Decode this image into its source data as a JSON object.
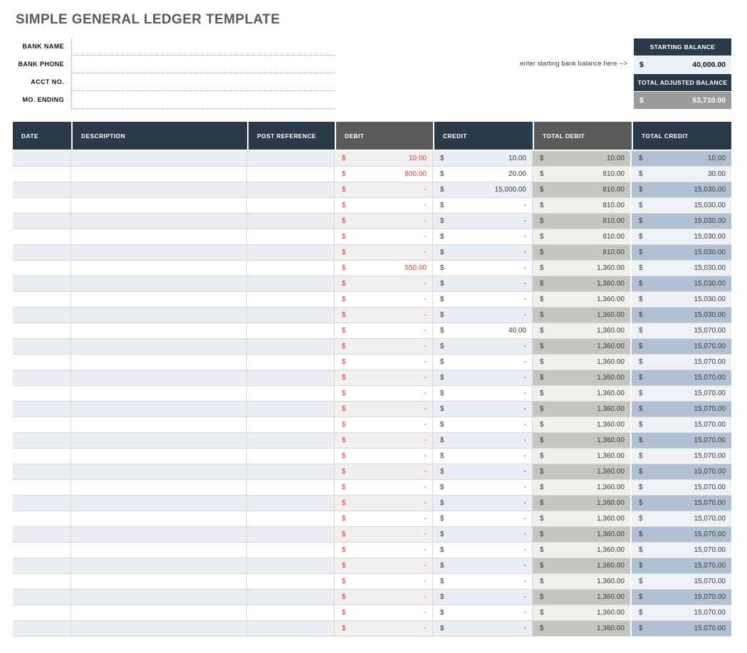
{
  "title": "SIMPLE GENERAL LEDGER TEMPLATE",
  "form": {
    "fields": [
      {
        "label": "BANK NAME",
        "value": ""
      },
      {
        "label": "BANK PHONE",
        "value": ""
      },
      {
        "label": "ACCT NO.",
        "value": ""
      },
      {
        "label": "MO. ENDING",
        "value": ""
      }
    ]
  },
  "balance_panel": {
    "hint": "enter starting bank balance here -->",
    "starting": {
      "label": "STARTING BALANCE",
      "currency": "$",
      "value": "40,000.00"
    },
    "adjusted": {
      "label": "TOTAL ADJUSTED BALANCE",
      "currency": "$",
      "value": "53,710.00"
    }
  },
  "table": {
    "currency": "$",
    "columns": [
      "DATE",
      "DESCRIPTION",
      "POST REFERENCE",
      "DEBIT",
      "CREDIT",
      "TOTAL DEBIT",
      "TOTAL CREDIT"
    ],
    "rows": [
      {
        "date": "",
        "description": "",
        "post_reference": "",
        "debit": "10.00",
        "credit": "10.00",
        "total_debit": "10.00",
        "total_credit": "10.00"
      },
      {
        "date": "",
        "description": "",
        "post_reference": "",
        "debit": "800.00",
        "credit": "20.00",
        "total_debit": "810.00",
        "total_credit": "30.00"
      },
      {
        "date": "",
        "description": "",
        "post_reference": "",
        "debit": "-",
        "credit": "15,000.00",
        "total_debit": "810.00",
        "total_credit": "15,030.00"
      },
      {
        "date": "",
        "description": "",
        "post_reference": "",
        "debit": "-",
        "credit": "-",
        "total_debit": "810.00",
        "total_credit": "15,030.00"
      },
      {
        "date": "",
        "description": "",
        "post_reference": "",
        "debit": "-",
        "credit": "-",
        "total_debit": "810.00",
        "total_credit": "15,030.00"
      },
      {
        "date": "",
        "description": "",
        "post_reference": "",
        "debit": "-",
        "credit": "-",
        "total_debit": "810.00",
        "total_credit": "15,030.00"
      },
      {
        "date": "",
        "description": "",
        "post_reference": "",
        "debit": "-",
        "credit": "-",
        "total_debit": "810.00",
        "total_credit": "15,030.00"
      },
      {
        "date": "",
        "description": "",
        "post_reference": "",
        "debit": "550.00",
        "credit": "-",
        "total_debit": "1,360.00",
        "total_credit": "15,030.00"
      },
      {
        "date": "",
        "description": "",
        "post_reference": "",
        "debit": "-",
        "credit": "-",
        "total_debit": "1,360.00",
        "total_credit": "15,030.00"
      },
      {
        "date": "",
        "description": "",
        "post_reference": "",
        "debit": "-",
        "credit": "-",
        "total_debit": "1,360.00",
        "total_credit": "15,030.00"
      },
      {
        "date": "",
        "description": "",
        "post_reference": "",
        "debit": "-",
        "credit": "-",
        "total_debit": "1,360.00",
        "total_credit": "15,030.00"
      },
      {
        "date": "",
        "description": "",
        "post_reference": "",
        "debit": "-",
        "credit": "40.00",
        "total_debit": "1,360.00",
        "total_credit": "15,070.00"
      },
      {
        "date": "",
        "description": "",
        "post_reference": "",
        "debit": "-",
        "credit": "-",
        "total_debit": "1,360.00",
        "total_credit": "15,070.00"
      },
      {
        "date": "",
        "description": "",
        "post_reference": "",
        "debit": "-",
        "credit": "-",
        "total_debit": "1,360.00",
        "total_credit": "15,070.00"
      },
      {
        "date": "",
        "description": "",
        "post_reference": "",
        "debit": "-",
        "credit": "-",
        "total_debit": "1,360.00",
        "total_credit": "15,070.00"
      },
      {
        "date": "",
        "description": "",
        "post_reference": "",
        "debit": "-",
        "credit": "-",
        "total_debit": "1,360.00",
        "total_credit": "15,070.00"
      },
      {
        "date": "",
        "description": "",
        "post_reference": "",
        "debit": "-",
        "credit": "-",
        "total_debit": "1,360.00",
        "total_credit": "15,070.00"
      },
      {
        "date": "",
        "description": "",
        "post_reference": "",
        "debit": "-",
        "credit": "-",
        "total_debit": "1,360.00",
        "total_credit": "15,070.00"
      },
      {
        "date": "",
        "description": "",
        "post_reference": "",
        "debit": "-",
        "credit": "-",
        "total_debit": "1,360.00",
        "total_credit": "15,070.00"
      },
      {
        "date": "",
        "description": "",
        "post_reference": "",
        "debit": "-",
        "credit": "-",
        "total_debit": "1,360.00",
        "total_credit": "15,070.00"
      },
      {
        "date": "",
        "description": "",
        "post_reference": "",
        "debit": "-",
        "credit": "-",
        "total_debit": "1,360.00",
        "total_credit": "15,070.00"
      },
      {
        "date": "",
        "description": "",
        "post_reference": "",
        "debit": "-",
        "credit": "-",
        "total_debit": "1,360.00",
        "total_credit": "15,070.00"
      },
      {
        "date": "",
        "description": "",
        "post_reference": "",
        "debit": "-",
        "credit": "-",
        "total_debit": "1,360.00",
        "total_credit": "15,070.00"
      },
      {
        "date": "",
        "description": "",
        "post_reference": "",
        "debit": "-",
        "credit": "-",
        "total_debit": "1,360.00",
        "total_credit": "15,070.00"
      },
      {
        "date": "",
        "description": "",
        "post_reference": "",
        "debit": "-",
        "credit": "-",
        "total_debit": "1,360.00",
        "total_credit": "15,070.00"
      },
      {
        "date": "",
        "description": "",
        "post_reference": "",
        "debit": "-",
        "credit": "-",
        "total_debit": "1,360.00",
        "total_credit": "15,070.00"
      },
      {
        "date": "",
        "description": "",
        "post_reference": "",
        "debit": "-",
        "credit": "-",
        "total_debit": "1,360.00",
        "total_credit": "15,070.00"
      },
      {
        "date": "",
        "description": "",
        "post_reference": "",
        "debit": "-",
        "credit": "-",
        "total_debit": "1,360.00",
        "total_credit": "15,070.00"
      },
      {
        "date": "",
        "description": "",
        "post_reference": "",
        "debit": "-",
        "credit": "-",
        "total_debit": "1,360.00",
        "total_credit": "15,070.00"
      },
      {
        "date": "",
        "description": "",
        "post_reference": "",
        "debit": "-",
        "credit": "-",
        "total_debit": "1,360.00",
        "total_credit": "15,070.00"
      },
      {
        "date": "",
        "description": "",
        "post_reference": "",
        "debit": "-",
        "credit": "-",
        "total_debit": "1,360.00",
        "total_credit": "15,070.00"
      }
    ]
  },
  "colors": {
    "header_navy": "#2b3a49",
    "header_gray": "#5a5a58",
    "debit_red": "#de3b35",
    "row_light": "#eaedf2",
    "total_debit_fill": "#c6c5c1",
    "total_credit_fill": "#b1c1d3",
    "starting_fill": "#edf0f4",
    "adjusted_fill": "#9b9b9b",
    "title_gray": "#595959"
  }
}
